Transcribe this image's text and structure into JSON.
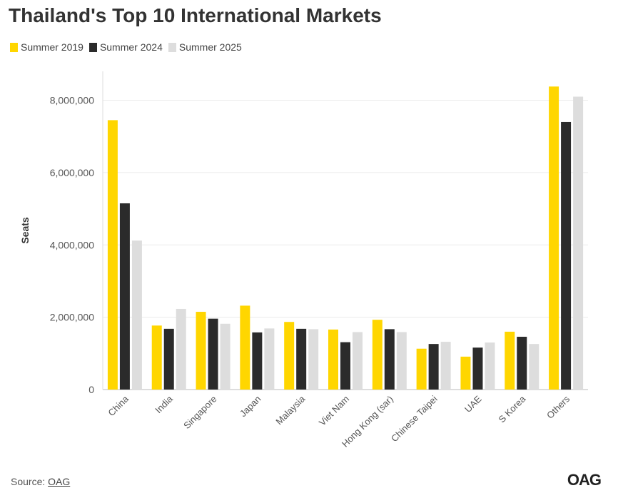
{
  "title": "Thailand's Top 10 International Markets",
  "source_label": "Source:",
  "source_link": "OAG",
  "brand": "OAG",
  "colors": {
    "Summer 2019": "#FFD600",
    "Summer 2024": "#2B2B2B",
    "Summer 2025": "#DDDDDD"
  },
  "chart_data": {
    "type": "bar",
    "title": "Thailand's Top 10 International Markets",
    "xlabel": "",
    "ylabel": "Seats",
    "ylim": [
      0,
      8800000
    ],
    "yticks": [
      0,
      2000000,
      4000000,
      6000000,
      8000000
    ],
    "ytick_labels": [
      "0",
      "2,000,000",
      "4,000,000",
      "6,000,000",
      "8,000,000"
    ],
    "grid": true,
    "legend_position": "top-left",
    "categories": [
      "China",
      "India",
      "Singapore",
      "Japan",
      "Malaysia",
      "Viet Nam",
      "Hong Kong (sar)",
      "Chinese Taipei",
      "UAE",
      "S Korea",
      "Others"
    ],
    "series": [
      {
        "name": "Summer 2019",
        "values": [
          7450000,
          1770000,
          2150000,
          2320000,
          1870000,
          1660000,
          1930000,
          1130000,
          910000,
          1600000,
          8380000
        ]
      },
      {
        "name": "Summer 2024",
        "values": [
          5150000,
          1680000,
          1960000,
          1580000,
          1680000,
          1310000,
          1670000,
          1260000,
          1160000,
          1460000,
          7400000
        ]
      },
      {
        "name": "Summer 2025",
        "values": [
          4120000,
          2230000,
          1820000,
          1690000,
          1670000,
          1590000,
          1590000,
          1320000,
          1300000,
          1260000,
          8100000
        ]
      }
    ]
  }
}
